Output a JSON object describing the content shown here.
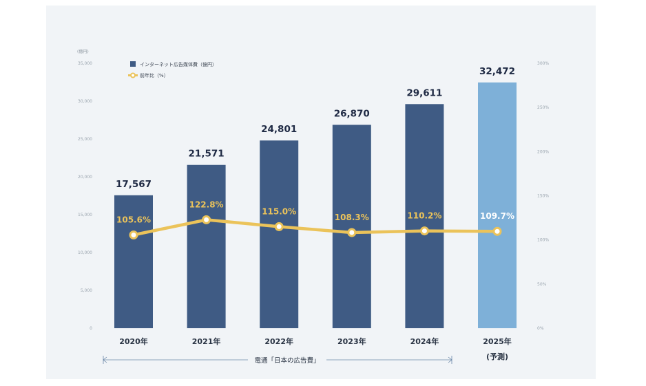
{
  "chart_data": {
    "type": "bar",
    "categories": [
      "2020年",
      "2021年",
      "2022年",
      "2023年",
      "2024年",
      "2025年"
    ],
    "category_notes": [
      "",
      "",
      "",
      "",
      "",
      "(予測)"
    ],
    "series": [
      {
        "name": "インターネット広告媒体費（億円）",
        "type": "bar",
        "axis": "left",
        "values": [
          17567,
          21571,
          24801,
          26870,
          29611,
          32472
        ],
        "value_labels": [
          "17,567",
          "21,571",
          "24,801",
          "26,870",
          "29,611",
          "32,472"
        ],
        "color": "#3f5b84",
        "forecast_color": "#7eb0d8",
        "forecast_index": 5
      },
      {
        "name": "前年比（%）",
        "type": "line",
        "axis": "right",
        "values": [
          105.6,
          122.8,
          115.0,
          108.3,
          110.2,
          109.7
        ],
        "value_labels": [
          "105.6%",
          "122.8%",
          "115.0%",
          "108.3%",
          "110.2%",
          "109.7%"
        ],
        "color": "#ebc35a",
        "forecast_label_color": "#ffffff"
      }
    ],
    "y_left": {
      "unit": "(億円)",
      "ylim": [
        0,
        35000
      ],
      "ticks": [
        0,
        5000,
        10000,
        15000,
        20000,
        25000,
        30000,
        35000
      ],
      "tick_labels": [
        "0",
        "5,000",
        "10,000",
        "15,000",
        "20,000",
        "25,000",
        "30,000",
        "35,000"
      ]
    },
    "y_right": {
      "ylim": [
        0,
        300
      ],
      "ticks": [
        0,
        50,
        100,
        150,
        200,
        250,
        300
      ],
      "tick_labels": [
        "0%",
        "50%",
        "100%",
        "150%",
        "200%",
        "250%",
        "300%"
      ]
    },
    "legend_position": "top-left",
    "grid": false,
    "source": "電通「日本の広告費」"
  }
}
